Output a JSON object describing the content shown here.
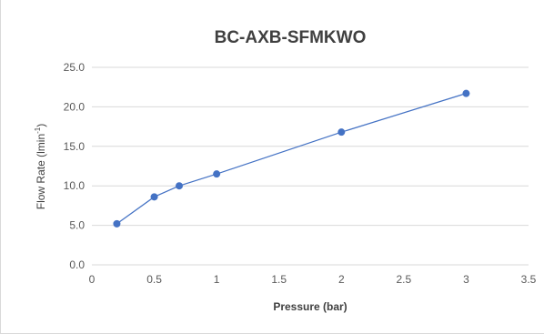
{
  "chart_data": {
    "type": "line",
    "title": "BC-AXB-SFMKWO",
    "xlabel": "Pressure (bar)",
    "ylabel": {
      "base": "Flow Rate (lmin",
      "superscript": "-1",
      "close": ")"
    },
    "xlim": [
      0,
      3.5
    ],
    "ylim": [
      0,
      25
    ],
    "x_ticks": [
      "0",
      "0.5",
      "1",
      "1.5",
      "2",
      "2.5",
      "3",
      "3.5"
    ],
    "y_ticks": [
      "0.0",
      "5.0",
      "10.0",
      "15.0",
      "20.0",
      "25.0"
    ],
    "grid": true,
    "legend": false,
    "series": [
      {
        "color": "#4472c4",
        "marker": "circle",
        "points": [
          {
            "x": 0.2,
            "y": 5.2
          },
          {
            "x": 0.5,
            "y": 8.6
          },
          {
            "x": 0.7,
            "y": 10.0
          },
          {
            "x": 1.0,
            "y": 11.5
          },
          {
            "x": 2.0,
            "y": 16.8
          },
          {
            "x": 3.0,
            "y": 21.7
          }
        ]
      }
    ]
  }
}
